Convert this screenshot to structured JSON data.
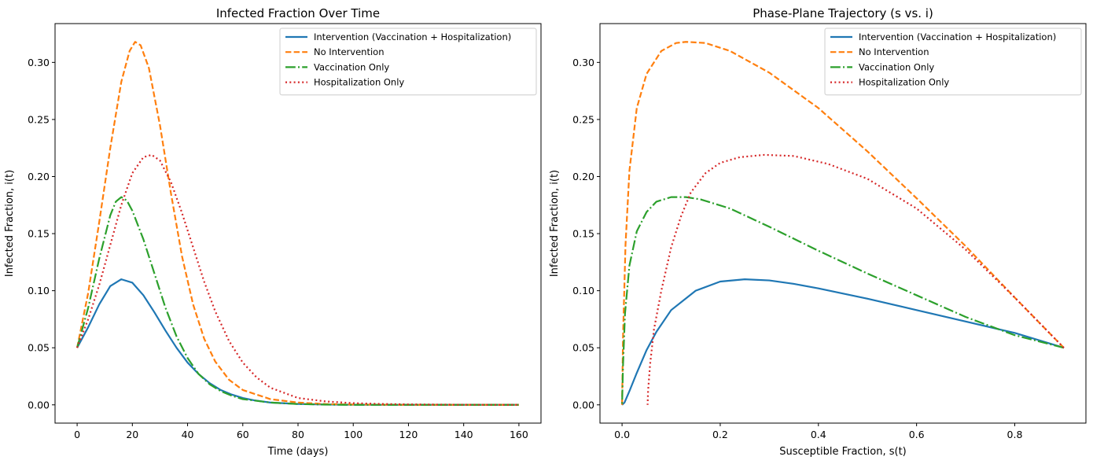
{
  "chart_data": [
    {
      "type": "line",
      "title": "Infected Fraction Over Time",
      "xlabel": "Time (days)",
      "ylabel": "Infected Fraction, i(t)",
      "xlim": [
        -8,
        168
      ],
      "ylim": [
        -0.016,
        0.334
      ],
      "xticks": [
        0,
        20,
        40,
        60,
        80,
        100,
        120,
        140,
        160
      ],
      "xtick_labels": [
        "0",
        "20",
        "40",
        "60",
        "80",
        "100",
        "120",
        "140",
        "160"
      ],
      "yticks": [
        0.0,
        0.05,
        0.1,
        0.15,
        0.2,
        0.25,
        0.3
      ],
      "ytick_labels": [
        "0.00",
        "0.05",
        "0.10",
        "0.15",
        "0.20",
        "0.25",
        "0.30"
      ],
      "legend_position": "top-right",
      "series": [
        {
          "name": "Intervention (Vaccination + Hospitalization)",
          "color": "#1f77b4",
          "dash": "solid",
          "x": [
            0,
            4,
            8,
            12,
            16,
            20,
            24,
            28,
            32,
            36,
            40,
            44,
            48,
            52,
            56,
            60,
            64,
            70,
            80,
            90,
            100,
            120,
            140,
            160
          ],
          "y": [
            0.05,
            0.068,
            0.088,
            0.104,
            0.11,
            0.107,
            0.096,
            0.081,
            0.065,
            0.05,
            0.037,
            0.027,
            0.019,
            0.013,
            0.009,
            0.006,
            0.004,
            0.002,
            0.0008,
            0.0003,
            0.0001,
            0.0,
            0.0,
            0.0
          ]
        },
        {
          "name": "No Intervention",
          "color": "#ff7f0e",
          "dash": "dashed",
          "x": [
            0,
            4,
            8,
            12,
            16,
            19,
            21,
            23,
            26,
            30,
            34,
            38,
            42,
            46,
            50,
            55,
            60,
            70,
            80,
            90,
            100,
            120,
            140,
            160
          ],
          "y": [
            0.05,
            0.098,
            0.16,
            0.225,
            0.283,
            0.31,
            0.318,
            0.315,
            0.295,
            0.245,
            0.185,
            0.13,
            0.088,
            0.058,
            0.038,
            0.022,
            0.013,
            0.005,
            0.002,
            0.0007,
            0.0003,
            0.0,
            0.0,
            0.0
          ]
        },
        {
          "name": "Vaccination Only",
          "color": "#2ca02c",
          "dash": "dashdot",
          "x": [
            0,
            4,
            8,
            12,
            14,
            16,
            18,
            20,
            24,
            28,
            32,
            36,
            40,
            44,
            48,
            52,
            56,
            60,
            70,
            80,
            90,
            100,
            120,
            140,
            160
          ],
          "y": [
            0.05,
            0.085,
            0.128,
            0.166,
            0.178,
            0.182,
            0.179,
            0.17,
            0.145,
            0.115,
            0.085,
            0.06,
            0.041,
            0.027,
            0.018,
            0.012,
            0.008,
            0.005,
            0.002,
            0.0007,
            0.0002,
            0.0,
            0.0,
            0.0,
            0.0
          ]
        },
        {
          "name": "Hospitalization Only",
          "color": "#d62728",
          "dash": "dotted",
          "x": [
            0,
            4,
            8,
            12,
            16,
            20,
            24,
            27,
            30,
            34,
            38,
            42,
            46,
            50,
            55,
            60,
            65,
            70,
            80,
            90,
            100,
            110,
            120,
            140,
            160
          ],
          "y": [
            0.05,
            0.075,
            0.105,
            0.14,
            0.175,
            0.203,
            0.217,
            0.219,
            0.214,
            0.195,
            0.168,
            0.138,
            0.108,
            0.082,
            0.056,
            0.037,
            0.024,
            0.015,
            0.006,
            0.003,
            0.0015,
            0.0008,
            0.0004,
            0.0001,
            0.0
          ]
        }
      ]
    },
    {
      "type": "line",
      "title": "Phase-Plane Trajectory (s vs. i)",
      "xlabel": "Susceptible Fraction, s(t)",
      "ylabel": "Infected Fraction, i(t)",
      "xlim": [
        -0.045,
        0.945
      ],
      "ylim": [
        -0.016,
        0.334
      ],
      "xticks": [
        0.0,
        0.2,
        0.4,
        0.6,
        0.8
      ],
      "xtick_labels": [
        "0.0",
        "0.2",
        "0.4",
        "0.6",
        "0.8"
      ],
      "yticks": [
        0.0,
        0.05,
        0.1,
        0.15,
        0.2,
        0.25,
        0.3
      ],
      "ytick_labels": [
        "0.00",
        "0.05",
        "0.10",
        "0.15",
        "0.20",
        "0.25",
        "0.30"
      ],
      "legend_position": "top-right",
      "series": [
        {
          "name": "Intervention (Vaccination + Hospitalization)",
          "color": "#1f77b4",
          "dash": "solid",
          "x": [
            0.9,
            0.8,
            0.7,
            0.6,
            0.5,
            0.4,
            0.35,
            0.3,
            0.25,
            0.2,
            0.15,
            0.1,
            0.07,
            0.05,
            0.03,
            0.015,
            0.005,
            0.0
          ],
          "y": [
            0.05,
            0.063,
            0.073,
            0.083,
            0.093,
            0.102,
            0.106,
            0.109,
            0.11,
            0.108,
            0.1,
            0.083,
            0.064,
            0.048,
            0.028,
            0.012,
            0.002,
            0.0
          ]
        },
        {
          "name": "No Intervention",
          "color": "#ff7f0e",
          "dash": "dashed",
          "x": [
            0.9,
            0.8,
            0.7,
            0.6,
            0.5,
            0.4,
            0.3,
            0.22,
            0.17,
            0.13,
            0.11,
            0.08,
            0.05,
            0.03,
            0.015,
            0.007,
            0.002,
            0.0
          ],
          "y": [
            0.05,
            0.094,
            0.139,
            0.181,
            0.222,
            0.26,
            0.291,
            0.31,
            0.317,
            0.318,
            0.317,
            0.31,
            0.29,
            0.26,
            0.205,
            0.14,
            0.06,
            0.0
          ]
        },
        {
          "name": "Vaccination Only",
          "color": "#2ca02c",
          "dash": "dashdot",
          "x": [
            0.9,
            0.8,
            0.7,
            0.6,
            0.5,
            0.4,
            0.3,
            0.22,
            0.16,
            0.13,
            0.1,
            0.07,
            0.05,
            0.03,
            0.015,
            0.006,
            0.002,
            0.0
          ],
          "y": [
            0.05,
            0.061,
            0.077,
            0.096,
            0.115,
            0.135,
            0.156,
            0.172,
            0.18,
            0.182,
            0.182,
            0.178,
            0.169,
            0.152,
            0.122,
            0.08,
            0.035,
            0.0
          ]
        },
        {
          "name": "Hospitalization Only",
          "color": "#d62728",
          "dash": "dotted",
          "x": [
            0.9,
            0.8,
            0.7,
            0.6,
            0.5,
            0.42,
            0.35,
            0.29,
            0.24,
            0.2,
            0.17,
            0.14,
            0.12,
            0.1,
            0.08,
            0.065,
            0.057,
            0.053,
            0.052
          ],
          "y": [
            0.05,
            0.094,
            0.136,
            0.172,
            0.198,
            0.211,
            0.218,
            0.219,
            0.217,
            0.212,
            0.203,
            0.186,
            0.165,
            0.138,
            0.1,
            0.066,
            0.035,
            0.012,
            0.0
          ]
        }
      ]
    }
  ]
}
